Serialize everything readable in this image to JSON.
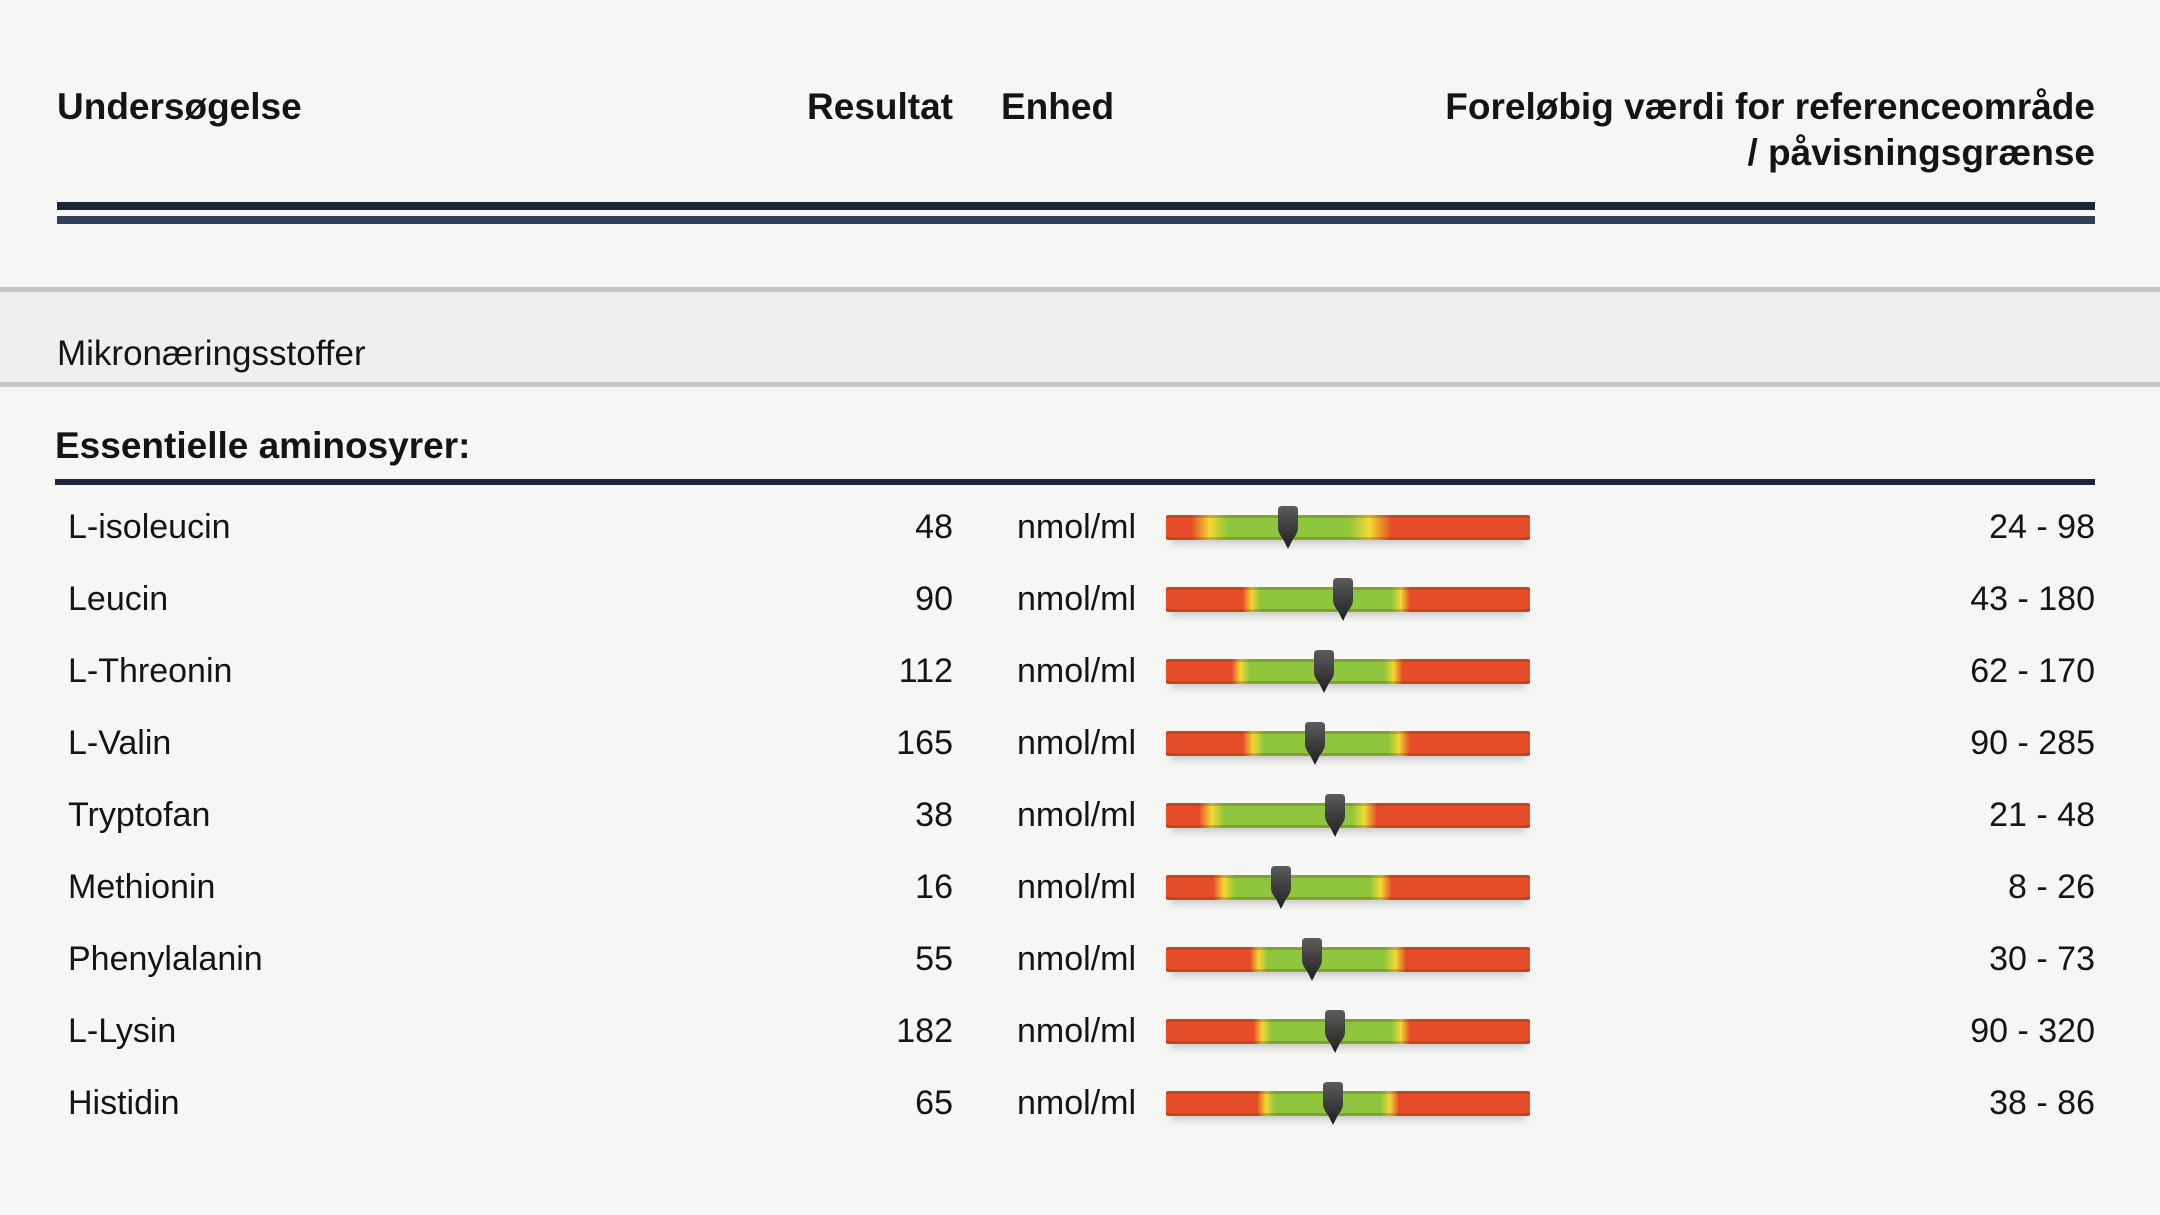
{
  "header": {
    "col_test": "Undersøgelse",
    "col_result": "Resultat",
    "col_unit": "Enhed",
    "col_ref_line1": "Foreløbig værdi for referenceområde",
    "col_ref_line2": "/ påvisningsgrænse"
  },
  "section": {
    "title": "Mikronæringsstoffer"
  },
  "group": {
    "title": "Essentielle aminosyrer:"
  },
  "colors": {
    "navy_dark": "#1b2636",
    "navy_light": "#2e4055",
    "red": "#e64d2a",
    "yellow": "#f2d832",
    "green": "#8fc63d",
    "marker_light": "#5c5c5c",
    "marker_dark": "#1f1f1f",
    "band_bg": "#f1efee",
    "band_border": "#c7c5c3",
    "page_bg": "#f6f6f4"
  },
  "rows": [
    {
      "name": "L-isoleucin",
      "result": "48",
      "unit": "nmol/ml",
      "range": "24 - 98",
      "gauge": {
        "r1": 7,
        "g1": 17,
        "g2": 50,
        "r2": 62,
        "marker": 33.5
      }
    },
    {
      "name": "Leucin",
      "result": "90",
      "unit": "nmol/ml",
      "range": "43 - 180",
      "gauge": {
        "r1": 21,
        "g1": 26,
        "g2": 62,
        "r2": 67,
        "marker": 48.5
      }
    },
    {
      "name": "L-Threonin",
      "result": "112",
      "unit": "nmol/ml",
      "range": "62 - 170",
      "gauge": {
        "r1": 18,
        "g1": 23,
        "g2": 60,
        "r2": 65,
        "marker": 43.5
      }
    },
    {
      "name": "L-Valin",
      "result": "165",
      "unit": "nmol/ml",
      "range": "90 - 285",
      "gauge": {
        "r1": 21,
        "g1": 27,
        "g2": 61,
        "r2": 67,
        "marker": 41
      }
    },
    {
      "name": "Tryptofan",
      "result": "38",
      "unit": "nmol/ml",
      "range": "21 - 48",
      "gauge": {
        "r1": 9,
        "g1": 16,
        "g2": 51,
        "r2": 58,
        "marker": 46.5
      }
    },
    {
      "name": "Methionin",
      "result": "16",
      "unit": "nmol/ml",
      "range": "8 - 26",
      "gauge": {
        "r1": 13,
        "g1": 19,
        "g2": 56,
        "r2": 62,
        "marker": 31.5
      }
    },
    {
      "name": "Phenylalanin",
      "result": "55",
      "unit": "nmol/ml",
      "range": "30 - 73",
      "gauge": {
        "r1": 23,
        "g1": 28,
        "g2": 60,
        "r2": 66,
        "marker": 40
      }
    },
    {
      "name": "L-Lysin",
      "result": "182",
      "unit": "nmol/ml",
      "range": "90 - 320",
      "gauge": {
        "r1": 24,
        "g1": 29,
        "g2": 62,
        "r2": 67,
        "marker": 46.5
      }
    },
    {
      "name": "Histidin",
      "result": "65",
      "unit": "nmol/ml",
      "range": "38 - 86",
      "gauge": {
        "r1": 25,
        "g1": 30,
        "g2": 59,
        "r2": 64,
        "marker": 46
      }
    }
  ],
  "chart_data": {
    "type": "table",
    "title": "Mikronæringsstoffer — Essentielle aminosyrer",
    "columns": [
      "Undersøgelse",
      "Resultat",
      "Enhed",
      "Foreløbig værdi for referenceområde / påvisningsgrænse"
    ],
    "rows": [
      [
        "L-isoleucin",
        48,
        "nmol/ml",
        "24 - 98"
      ],
      [
        "Leucin",
        90,
        "nmol/ml",
        "43 - 180"
      ],
      [
        "L-Threonin",
        112,
        "nmol/ml",
        "62 - 170"
      ],
      [
        "L-Valin",
        165,
        "nmol/ml",
        "90 - 285"
      ],
      [
        "Tryptofan",
        38,
        "nmol/ml",
        "21 - 48"
      ],
      [
        "Methionin",
        16,
        "nmol/ml",
        "8 - 26"
      ],
      [
        "Phenylalanin",
        55,
        "nmol/ml",
        "30 - 73"
      ],
      [
        "L-Lysin",
        182,
        "nmol/ml",
        "90 - 320"
      ],
      [
        "Histidin",
        65,
        "nmol/ml",
        "38 - 86"
      ]
    ],
    "gauge_legend": "Each row shows a red-yellow-green reference gauge with a dark pointer marking the measured value inside the reference interval"
  }
}
